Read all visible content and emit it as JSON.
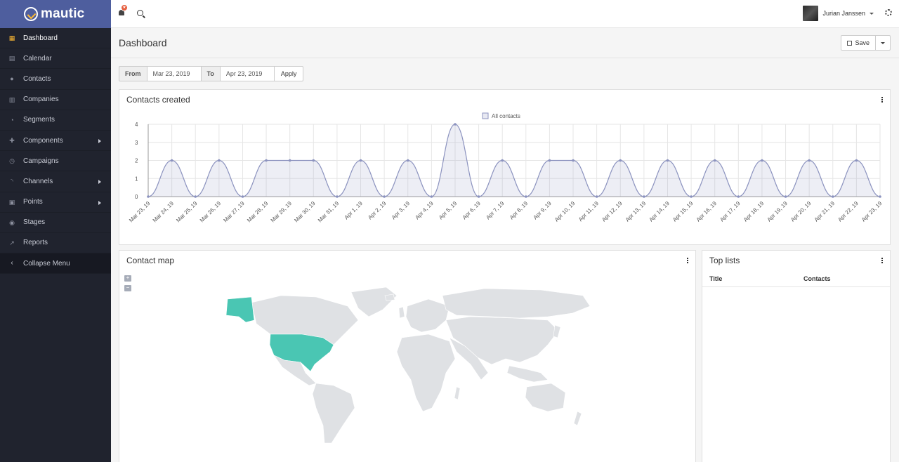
{
  "brand": {
    "name": "mautic",
    "accent": "#4e5e9e",
    "logo_accent": "#fdb933"
  },
  "sidebar": {
    "items": [
      {
        "label": "Dashboard",
        "icon": "dashboard-icon",
        "active": true
      },
      {
        "label": "Calendar",
        "icon": "calendar-icon"
      },
      {
        "label": "Contacts",
        "icon": "user-icon"
      },
      {
        "label": "Companies",
        "icon": "building-icon"
      },
      {
        "label": "Segments",
        "icon": "pie-chart-icon"
      },
      {
        "label": "Components",
        "icon": "puzzle-icon",
        "submenu": true
      },
      {
        "label": "Campaigns",
        "icon": "clock-icon"
      },
      {
        "label": "Channels",
        "icon": "rss-icon",
        "submenu": true
      },
      {
        "label": "Points",
        "icon": "calculator-icon",
        "submenu": true
      },
      {
        "label": "Stages",
        "icon": "tachometer-icon"
      },
      {
        "label": "Reports",
        "icon": "line-chart-icon"
      }
    ],
    "collapse_label": "Collapse Menu"
  },
  "topbar": {
    "notification_badge": "★",
    "user_name": "Jurian Janssen"
  },
  "page": {
    "title": "Dashboard",
    "save_label": "Save"
  },
  "date_filter": {
    "from_label": "From",
    "from_value": "Mar 23, 2019",
    "to_label": "To",
    "to_value": "Apr 23, 2019",
    "apply_label": "Apply"
  },
  "widgets": {
    "contacts_created_title": "Contacts created",
    "contact_map_title": "Contact map",
    "top_lists_title": "Top lists",
    "top_lists_columns": [
      "Title",
      "Contacts"
    ],
    "map_highlight_color": "#4ac6b3",
    "map_base_color": "#dfe1e4"
  },
  "chart_data": {
    "type": "line",
    "legend": "All contacts",
    "legend_placement": "top-center",
    "series_color": "#8c93bf",
    "ylim": [
      0,
      4
    ],
    "yticks": [
      0,
      1,
      2,
      3,
      4
    ],
    "grid": true,
    "categories": [
      "Mar 23, 19",
      "Mar 24, 19",
      "Mar 25, 19",
      "Mar 26, 19",
      "Mar 27, 19",
      "Mar 28, 19",
      "Mar 29, 19",
      "Mar 30, 19",
      "Mar 31, 19",
      "Apr 1, 19",
      "Apr 2, 19",
      "Apr 3, 19",
      "Apr 4, 19",
      "Apr 5, 19",
      "Apr 6, 19",
      "Apr 7, 19",
      "Apr 8, 19",
      "Apr 9, 19",
      "Apr 10, 19",
      "Apr 11, 19",
      "Apr 12, 19",
      "Apr 13, 19",
      "Apr 14, 19",
      "Apr 15, 19",
      "Apr 16, 19",
      "Apr 17, 19",
      "Apr 18, 19",
      "Apr 19, 19",
      "Apr 20, 19",
      "Apr 21, 19",
      "Apr 22, 19",
      "Apr 23, 19"
    ],
    "series": [
      {
        "name": "All contacts",
        "values": [
          0,
          2,
          0,
          2,
          0,
          2,
          2,
          2,
          0,
          2,
          0,
          2,
          0,
          4,
          0,
          2,
          0,
          2,
          2,
          0,
          2,
          0,
          2,
          0,
          2,
          0,
          2,
          0,
          2,
          0,
          2,
          0
        ]
      }
    ]
  }
}
